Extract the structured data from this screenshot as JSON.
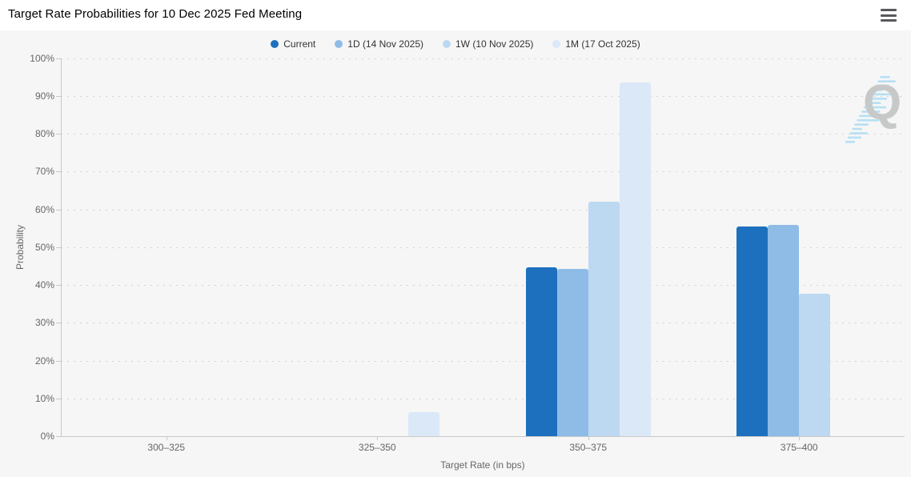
{
  "header": {
    "title": "Target Rate Probabilities for 10 Dec 2025 Fed Meeting"
  },
  "watermark": {
    "letter": "Q"
  },
  "chart_data": {
    "type": "bar",
    "title": "Target Rate Probabilities for 10 Dec 2025 Fed Meeting",
    "categories": [
      "300–325",
      "325–350",
      "350–375",
      "375–400"
    ],
    "series": [
      {
        "name": "Current",
        "color": "#1d70bd",
        "values": [
          0,
          0,
          44.6,
          55.4
        ]
      },
      {
        "name": "1D (14 Nov 2025)",
        "color": "#8fbce7",
        "values": [
          0,
          0,
          44.2,
          55.8
        ]
      },
      {
        "name": "1W (10 Nov 2025)",
        "color": "#bdd8f1",
        "values": [
          0,
          0,
          62.1,
          37.7
        ]
      },
      {
        "name": "1M (17 Oct 2025)",
        "color": "#dbe8f8",
        "values": [
          0,
          6.3,
          93.5,
          0
        ]
      }
    ],
    "xlabel": "Target Rate (in bps)",
    "ylabel": "Probability",
    "ylim": [
      0,
      100
    ],
    "ytick_labels": [
      "0%",
      "10%",
      "20%",
      "30%",
      "40%",
      "50%",
      "60%",
      "70%",
      "80%",
      "90%",
      "100%"
    ],
    "grid": "horizontal-dotted",
    "legend_position": "top-center"
  }
}
